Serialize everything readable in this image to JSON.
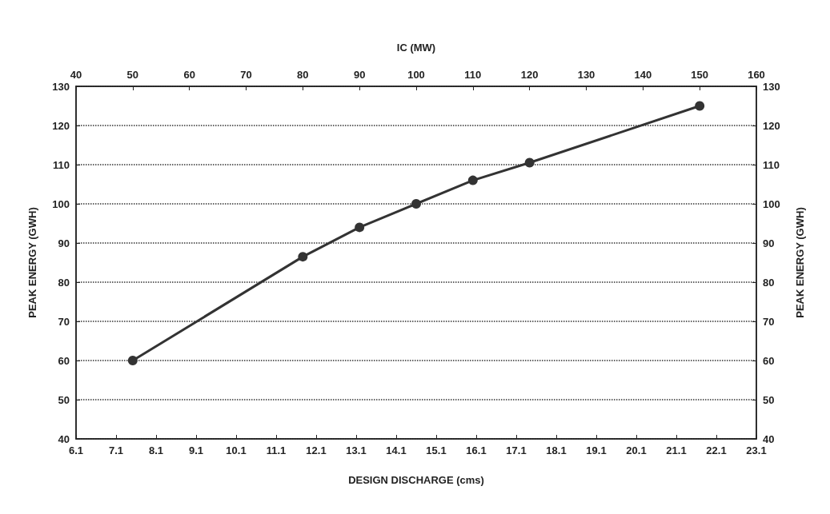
{
  "chart_data": {
    "type": "line",
    "xlabel": "DESIGN DISCHARGE (cms)",
    "x2label": "IC (MW)",
    "ylabel": "PEAK ENERGY (GWH)",
    "y2label": "PEAK ENERGY (GWH)",
    "xlim": [
      6.1,
      23.1
    ],
    "xticks": [
      6.1,
      7.1,
      8.1,
      9.1,
      10.1,
      11.1,
      12.1,
      13.1,
      14.1,
      15.1,
      16.1,
      17.1,
      18.1,
      19.1,
      20.1,
      21.1,
      22.1,
      23.1
    ],
    "x2lim": [
      40,
      160
    ],
    "x2ticks": [
      40,
      50,
      60,
      70,
      80,
      90,
      100,
      110,
      120,
      130,
      140,
      150,
      160
    ],
    "ylim": [
      40,
      130
    ],
    "yticks": [
      40,
      50,
      60,
      70,
      80,
      90,
      100,
      110,
      120,
      130
    ],
    "y2lim": [
      40,
      130
    ],
    "y2ticks": [
      40,
      50,
      60,
      70,
      80,
      90,
      100,
      110,
      120,
      130
    ],
    "series": [
      {
        "axis": "x2",
        "color": "#333333",
        "x": [
          50,
          80,
          90,
          100,
          110,
          120,
          150
        ],
        "values": [
          60,
          86.5,
          94,
          100,
          106,
          110.5,
          125
        ]
      }
    ],
    "grid": "y",
    "marker": "circle",
    "line_style": "solid"
  }
}
